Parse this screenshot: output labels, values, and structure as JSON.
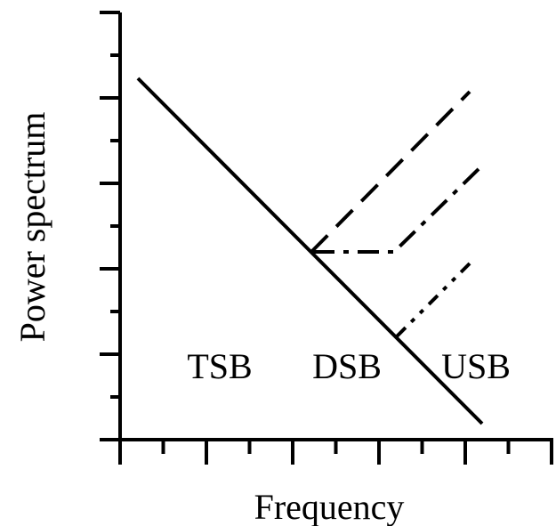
{
  "axes": {
    "x_label": "Frequency",
    "y_label": "Power spectrum"
  },
  "regions": [
    {
      "label": "TSB"
    },
    {
      "label": "DSB"
    },
    {
      "label": "USB"
    }
  ]
}
